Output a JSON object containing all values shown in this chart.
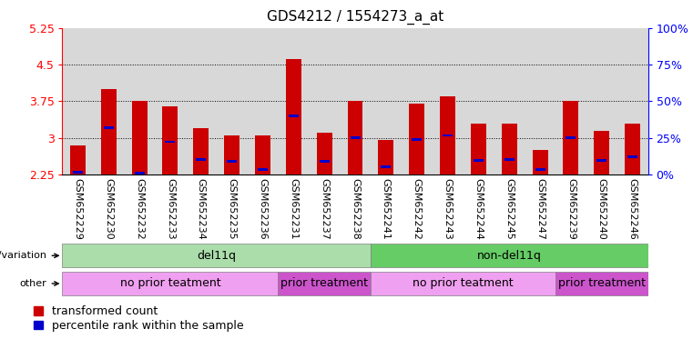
{
  "title": "GDS4212 / 1554273_a_at",
  "samples": [
    "GSM652229",
    "GSM652230",
    "GSM652232",
    "GSM652233",
    "GSM652234",
    "GSM652235",
    "GSM652236",
    "GSM652231",
    "GSM652237",
    "GSM652238",
    "GSM652241",
    "GSM652242",
    "GSM652243",
    "GSM652244",
    "GSM652245",
    "GSM652247",
    "GSM652239",
    "GSM652240",
    "GSM652246"
  ],
  "red_values": [
    2.85,
    4.0,
    3.75,
    3.65,
    3.2,
    3.05,
    3.05,
    4.62,
    3.1,
    3.75,
    2.95,
    3.7,
    3.85,
    3.3,
    3.3,
    2.75,
    3.75,
    3.15,
    3.3
  ],
  "blue_values": [
    2.3,
    3.2,
    2.28,
    2.92,
    2.55,
    2.52,
    2.35,
    3.45,
    2.52,
    3.0,
    2.4,
    2.96,
    3.05,
    2.53,
    2.56,
    2.35,
    3.0,
    2.53,
    2.62
  ],
  "ymin": 2.25,
  "ymax": 5.25,
  "yticks": [
    2.25,
    3.0,
    3.75,
    4.5,
    5.25
  ],
  "ytick_labels": [
    "2.25",
    "3",
    "3.75",
    "4.5",
    "5.25"
  ],
  "right_yticks": [
    0,
    25,
    50,
    75,
    100
  ],
  "right_ytick_labels": [
    "0%",
    "25%",
    "50%",
    "75%",
    "100%"
  ],
  "bar_color": "#cc0000",
  "blue_color": "#0000cc",
  "col_bg_color": "#d8d8d8",
  "bar_width": 0.5,
  "genotype_groups": [
    {
      "label": "del11q",
      "start": 0,
      "end": 10,
      "color": "#aaddaa"
    },
    {
      "label": "non-del11q",
      "start": 10,
      "end": 19,
      "color": "#66cc66"
    }
  ],
  "other_groups": [
    {
      "label": "no prior teatment",
      "start": 0,
      "end": 7,
      "color": "#f0a0f0"
    },
    {
      "label": "prior treatment",
      "start": 7,
      "end": 10,
      "color": "#cc55cc"
    },
    {
      "label": "no prior teatment",
      "start": 10,
      "end": 16,
      "color": "#f0a0f0"
    },
    {
      "label": "prior treatment",
      "start": 16,
      "end": 19,
      "color": "#cc55cc"
    }
  ],
  "legend_items": [
    {
      "label": "transformed count",
      "color": "#cc0000"
    },
    {
      "label": "percentile rank within the sample",
      "color": "#0000cc"
    }
  ],
  "tick_fontsize": 8,
  "annot_label_fontsize": 8,
  "annot_text_fontsize": 9
}
